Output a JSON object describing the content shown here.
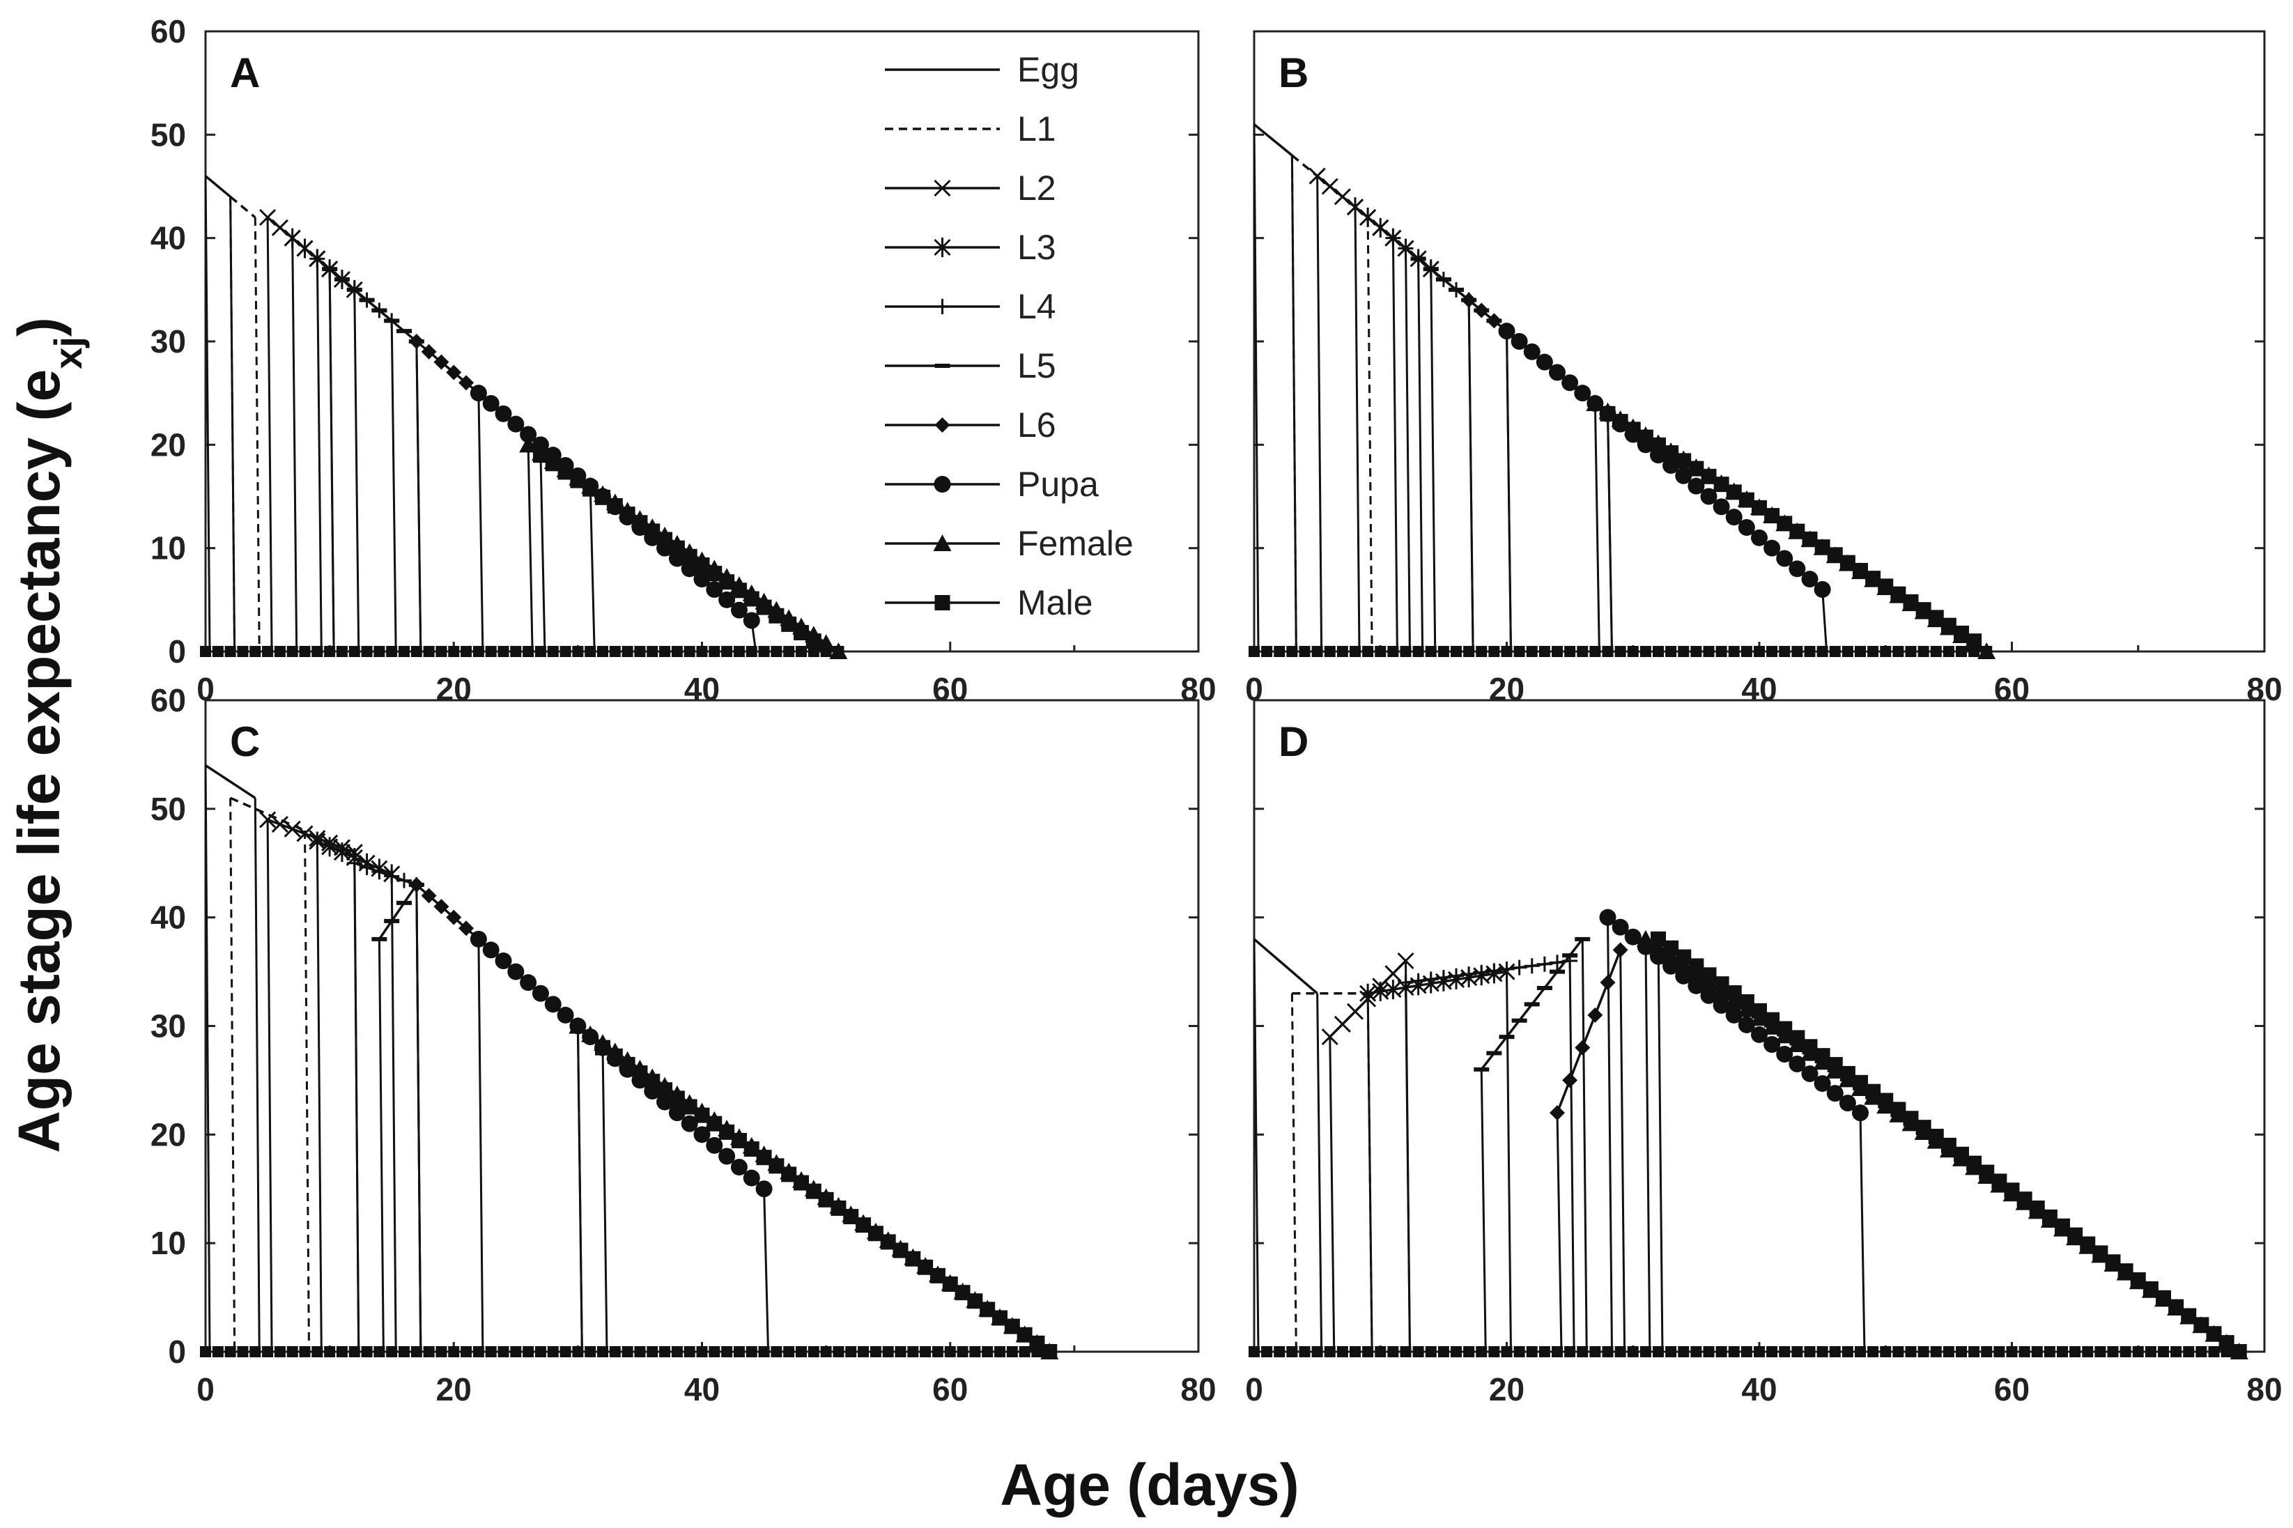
{
  "figure": {
    "ylabel_main": "Age stage life expectancy (e",
    "ylabel_sub": "xj",
    "ylabel_close": ")",
    "xlabel": "Age (days)"
  },
  "legend": [
    {
      "name": "Egg",
      "style": "solid",
      "marker": "none"
    },
    {
      "name": "L1",
      "style": "dashed",
      "marker": "none"
    },
    {
      "name": "L2",
      "style": "solid",
      "marker": "x"
    },
    {
      "name": "L3",
      "style": "solid",
      "marker": "star"
    },
    {
      "name": "L4",
      "style": "solid",
      "marker": "plus"
    },
    {
      "name": "L5",
      "style": "solid",
      "marker": "dash"
    },
    {
      "name": "L6",
      "style": "solid",
      "marker": "diamond"
    },
    {
      "name": "Pupa",
      "style": "solid",
      "marker": "circle"
    },
    {
      "name": "Female",
      "style": "solid",
      "marker": "triangle"
    },
    {
      "name": "Male",
      "style": "solid",
      "marker": "square"
    }
  ],
  "chart_data": [
    {
      "panel": "A",
      "type": "line",
      "xlabel": "Age (days)",
      "ylabel": "Age stage life expectancy (exj)",
      "xlim": [
        0,
        80
      ],
      "ylim": [
        0,
        60
      ],
      "xticks": [
        "0",
        "20",
        "40",
        "60",
        "80"
      ],
      "yticks": [
        "0",
        "10",
        "20",
        "30",
        "40",
        "50",
        "60"
      ],
      "series": [
        {
          "name": "Egg",
          "x": [
            0,
            2
          ],
          "y": [
            46,
            44
          ]
        },
        {
          "name": "L1",
          "x": [
            2,
            4
          ],
          "y": [
            44,
            42
          ]
        },
        {
          "name": "L2",
          "x": [
            5,
            10
          ],
          "y": [
            42,
            37
          ]
        },
        {
          "name": "L3",
          "x": [
            7,
            12
          ],
          "y": [
            40,
            35
          ]
        },
        {
          "name": "L4",
          "x": [
            9,
            15
          ],
          "y": [
            38,
            32
          ]
        },
        {
          "name": "L5",
          "x": [
            10,
            17
          ],
          "y": [
            37,
            30
          ]
        },
        {
          "name": "L6",
          "x": [
            17,
            31
          ],
          "y": [
            30,
            16
          ]
        },
        {
          "name": "Pupa",
          "x": [
            22,
            44
          ],
          "y": [
            25,
            3
          ]
        },
        {
          "name": "Female",
          "x": [
            26,
            51
          ],
          "y": [
            20,
            0
          ]
        },
        {
          "name": "Male",
          "x": [
            27,
            49
          ],
          "y": [
            19,
            1
          ]
        }
      ]
    },
    {
      "panel": "B",
      "type": "line",
      "xlabel": "Age (days)",
      "ylabel": "Age stage life expectancy (exj)",
      "xlim": [
        0,
        80
      ],
      "ylim": [
        0,
        60
      ],
      "xticks": [
        "0",
        "20",
        "40",
        "60",
        "80"
      ],
      "yticks": [
        "0",
        "10",
        "20",
        "30",
        "40",
        "50",
        "60"
      ],
      "series": [
        {
          "name": "Egg",
          "x": [
            0,
            3
          ],
          "y": [
            51,
            48
          ]
        },
        {
          "name": "L1",
          "x": [
            3,
            9
          ],
          "y": [
            48,
            42
          ]
        },
        {
          "name": "L2",
          "x": [
            5,
            12
          ],
          "y": [
            46,
            39
          ]
        },
        {
          "name": "L3",
          "x": [
            8,
            14
          ],
          "y": [
            43,
            37
          ]
        },
        {
          "name": "L4",
          "x": [
            11,
            17
          ],
          "y": [
            40,
            34
          ]
        },
        {
          "name": "L5",
          "x": [
            13,
            20
          ],
          "y": [
            38,
            31
          ]
        },
        {
          "name": "L6",
          "x": [
            17,
            28
          ],
          "y": [
            34,
            23
          ]
        },
        {
          "name": "Pupa",
          "x": [
            20,
            45
          ],
          "y": [
            31,
            6
          ]
        },
        {
          "name": "Female",
          "x": [
            27,
            58
          ],
          "y": [
            24,
            0
          ]
        },
        {
          "name": "Male",
          "x": [
            28,
            57
          ],
          "y": [
            23,
            1
          ]
        }
      ]
    },
    {
      "panel": "C",
      "type": "line",
      "xlabel": "Age (days)",
      "ylabel": "Age stage life expectancy (exj)",
      "xlim": [
        0,
        80
      ],
      "ylim": [
        0,
        60
      ],
      "xticks": [
        "0",
        "20",
        "40",
        "60",
        "80"
      ],
      "yticks": [
        "0",
        "10",
        "20",
        "30",
        "40",
        "50",
        "60"
      ],
      "series": [
        {
          "name": "Egg",
          "x": [
            0,
            4
          ],
          "y": [
            54,
            51
          ]
        },
        {
          "name": "L1",
          "x": [
            2,
            8
          ],
          "y": [
            51,
            48
          ]
        },
        {
          "name": "L2",
          "x": [
            5,
            12
          ],
          "y": [
            49,
            46
          ]
        },
        {
          "name": "L3",
          "x": [
            9,
            15
          ],
          "y": [
            47,
            44
          ]
        },
        {
          "name": "L4",
          "x": [
            12,
            17
          ],
          "y": [
            45,
            43
          ]
        },
        {
          "name": "L5",
          "x": [
            14,
            17
          ],
          "y": [
            38,
            43
          ]
        },
        {
          "name": "L6",
          "x": [
            17,
            30
          ],
          "y": [
            43,
            30
          ]
        },
        {
          "name": "Pupa",
          "x": [
            22,
            45
          ],
          "y": [
            38,
            15
          ]
        },
        {
          "name": "Female",
          "x": [
            30,
            68
          ],
          "y": [
            30,
            0
          ]
        },
        {
          "name": "Male",
          "x": [
            32,
            68
          ],
          "y": [
            28,
            0
          ]
        }
      ]
    },
    {
      "panel": "D",
      "type": "line",
      "xlabel": "Age (days)",
      "ylabel": "Age stage life expectancy (exj)",
      "xlim": [
        0,
        80
      ],
      "ylim": [
        0,
        60
      ],
      "xticks": [
        "0",
        "20",
        "40",
        "60",
        "80"
      ],
      "yticks": [
        "0",
        "10",
        "20",
        "30",
        "40",
        "50",
        "60"
      ],
      "series": [
        {
          "name": "Egg",
          "x": [
            0,
            5
          ],
          "y": [
            38,
            33
          ]
        },
        {
          "name": "L1",
          "x": [
            3,
            9
          ],
          "y": [
            33,
            33
          ]
        },
        {
          "name": "L2",
          "x": [
            6,
            12
          ],
          "y": [
            29,
            36
          ]
        },
        {
          "name": "L3",
          "x": [
            9,
            20
          ],
          "y": [
            33,
            35
          ]
        },
        {
          "name": "L4",
          "x": [
            12,
            25
          ],
          "y": [
            34,
            36
          ]
        },
        {
          "name": "L5",
          "x": [
            18,
            26
          ],
          "y": [
            26,
            38
          ]
        },
        {
          "name": "L6",
          "x": [
            24,
            29
          ],
          "y": [
            22,
            37
          ]
        },
        {
          "name": "Pupa",
          "x": [
            28,
            48
          ],
          "y": [
            40,
            22
          ]
        },
        {
          "name": "Female",
          "x": [
            31,
            78
          ],
          "y": [
            38,
            0
          ]
        },
        {
          "name": "Male",
          "x": [
            32,
            78
          ],
          "y": [
            38,
            0
          ]
        }
      ]
    }
  ]
}
